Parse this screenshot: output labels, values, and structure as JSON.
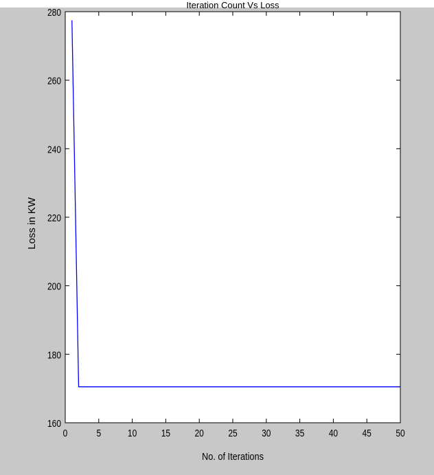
{
  "chart_data": {
    "type": "line",
    "title": "Iteration Count Vs Loss",
    "xlabel": "No. of Iterations",
    "ylabel": "Loss in KW",
    "xlim": [
      0,
      50
    ],
    "ylim": [
      160,
      280
    ],
    "x_ticks": [
      0,
      5,
      10,
      15,
      20,
      25,
      30,
      35,
      40,
      45,
      50
    ],
    "y_ticks": [
      160,
      180,
      200,
      220,
      240,
      260,
      280
    ],
    "grid": false,
    "line_color": "#0000ff",
    "series": [
      {
        "x": [
          1,
          2,
          3,
          4,
          5,
          6,
          7,
          8,
          9,
          10,
          11,
          12,
          13,
          14,
          15,
          16,
          17,
          18,
          19,
          20,
          21,
          22,
          23,
          24,
          25,
          26,
          27,
          28,
          29,
          30,
          31,
          32,
          33,
          34,
          35,
          36,
          37,
          38,
          39,
          40,
          41,
          42,
          43,
          44,
          45,
          46,
          47,
          48,
          49,
          50
        ],
        "values": [
          277.5,
          170.5,
          170.5,
          170.5,
          170.5,
          170.5,
          170.5,
          170.5,
          170.5,
          170.5,
          170.5,
          170.5,
          170.5,
          170.5,
          170.5,
          170.5,
          170.5,
          170.5,
          170.5,
          170.5,
          170.5,
          170.5,
          170.5,
          170.5,
          170.5,
          170.5,
          170.5,
          170.5,
          170.5,
          170.5,
          170.5,
          170.5,
          170.5,
          170.5,
          170.5,
          170.5,
          170.5,
          170.5,
          170.5,
          170.5,
          170.5,
          170.5,
          170.5,
          170.5,
          170.5,
          170.5,
          170.5,
          170.5,
          170.5,
          170.5
        ]
      }
    ]
  }
}
